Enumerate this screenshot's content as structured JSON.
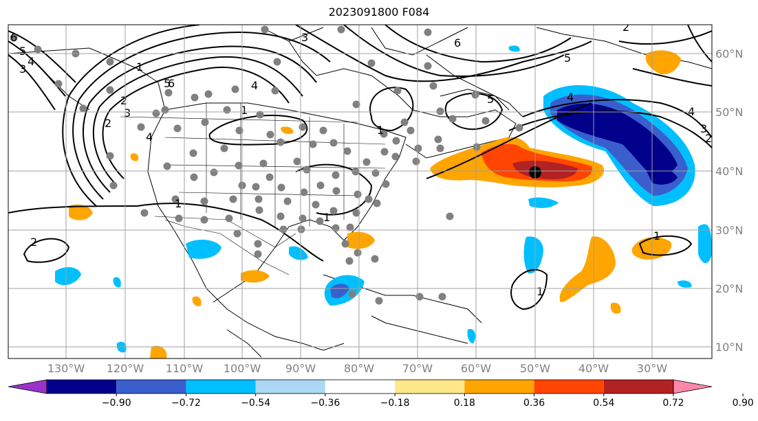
{
  "title": "2023091800 F084",
  "lon_ticks": [
    "130°W",
    "120°W",
    "110°W",
    "100°W",
    "90°W",
    "80°W",
    "70°W",
    "60°W",
    "50°W",
    "40°W",
    "30°W"
  ],
  "lat_ticks": [
    "60°N",
    "50°N",
    "40°N",
    "30°N",
    "20°N",
    "10°N"
  ],
  "colorbar": {
    "labels": [
      "−0.90",
      "−0.72",
      "−0.54",
      "−0.36",
      "−0.18",
      "0.18",
      "0.36",
      "0.54",
      "0.72",
      "0.90"
    ],
    "colors": [
      "#9932cc",
      "#00008b",
      "#3a5fcd",
      "#00bfff",
      "#add8f5",
      "#ffffff",
      "#ffe88a",
      "#ffa500",
      "#ff4500",
      "#b22222",
      "#ff88aa"
    ]
  },
  "contour_labels": [
    "6",
    "5",
    "4",
    "3",
    "2",
    "1",
    "2",
    "3",
    "4",
    "5",
    "6",
    "1",
    "1",
    "1",
    "2",
    "3",
    "4",
    "5",
    "6",
    "4",
    "3",
    "2",
    "4",
    "5",
    "1",
    "1",
    "1",
    "2"
  ],
  "storm_marker": {
    "lon": "50°W",
    "lat": "40°N"
  }
}
